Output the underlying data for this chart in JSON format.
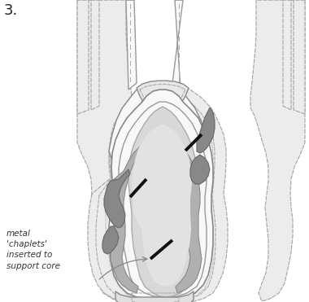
{
  "bg_color": "#ffffff",
  "label_number": "3.",
  "annotation_text": "metal\n'chaplets'\ninserted to\nsupport core",
  "line_color_outer": "#aaaaaa",
  "line_color_dark": "#777777",
  "fill_light": "#e0e0e0",
  "fill_lighter": "#ececec",
  "fill_medium": "#999999",
  "fill_white": "#f8f8f8",
  "chaplet_color": "#111111",
  "arrow_color": "#888888"
}
